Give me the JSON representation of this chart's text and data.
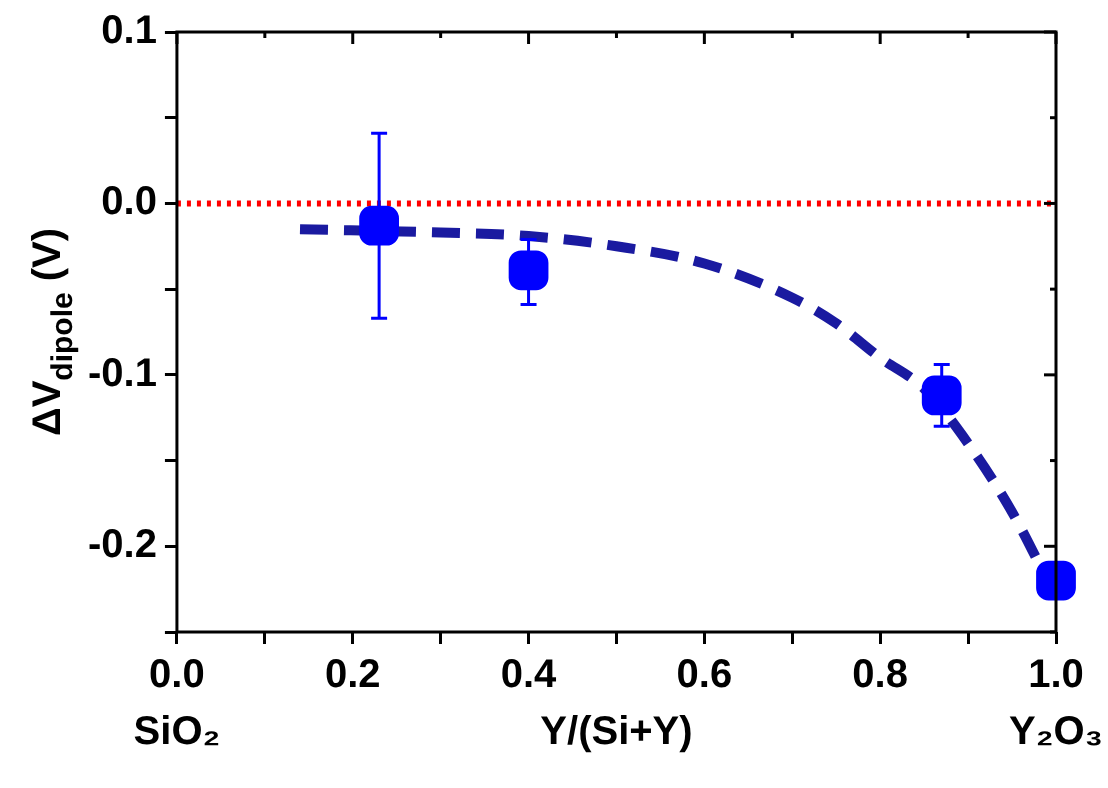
{
  "chart_data": {
    "type": "scatter",
    "xlabel": "Y/(Si+Y)",
    "ylabel": "ΔV$_{dipole}$ (V)",
    "xlim": [
      0,
      1
    ],
    "xticks": [
      {
        "value": 0,
        "label": "0.0"
      },
      {
        "value": 0.1,
        "label": null
      },
      0.2,
      {
        "value": 0.3,
        "label": null
      },
      0.4,
      {
        "value": 0.5,
        "label": null
      },
      0.6,
      {
        "value": 0.7,
        "label": null
      },
      0.8,
      {
        "value": 0.9,
        "label": null
      },
      {
        "value": 1,
        "label": "1.0"
      }
    ],
    "ylim": [
      -0.25,
      0.1
    ],
    "yticks": [
      {
        "value": -0.25,
        "label": null
      },
      -0.2,
      {
        "value": -0.15,
        "label": null
      },
      -0.1,
      {
        "value": -0.05,
        "label": null
      },
      {
        "value": 0,
        "label": "0.0"
      },
      {
        "value": 0.05,
        "label": null
      },
      0.1
    ],
    "grid": false,
    "legend": false,
    "annotations": [
      "SiO₂",
      "Y₂O₃"
    ],
    "ref_lines": [
      {
        "axis": "y",
        "value": 0,
        "color": "#ff0000",
        "line_style": "dotted"
      }
    ],
    "series": [
      {
        "color": "#0000ff",
        "marker": "square",
        "x": [
          0.23,
          0.4,
          0.87,
          1.0
        ],
        "values": [
          -0.013,
          -0.039,
          -0.112,
          -0.22
        ],
        "errors": [
          [
            -0.067,
            0.041
          ],
          [
            -0.059,
            -0.021
          ],
          [
            -0.13,
            -0.094
          ],
          null
        ]
      },
      {
        "type": "line",
        "color": "#1a1aa0",
        "marker": "none",
        "line_style": "dashed",
        "x": [
          0.14,
          0.3,
          0.4,
          0.5,
          0.6,
          0.7,
          0.75,
          0.8,
          0.85,
          0.9,
          0.95,
          1.0
        ],
        "values": [
          -0.015,
          -0.017,
          -0.019,
          -0.025,
          -0.035,
          -0.055,
          -0.07,
          -0.09,
          -0.108,
          -0.14,
          -0.18,
          -0.23
        ]
      }
    ]
  }
}
